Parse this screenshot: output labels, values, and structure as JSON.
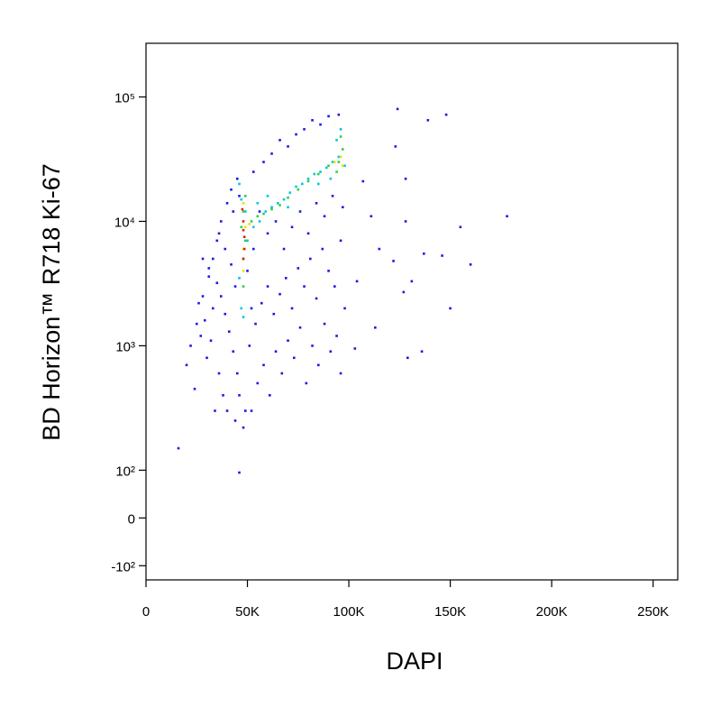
{
  "chart_data": {
    "type": "scatter",
    "x_label": "DAPI",
    "y_label": "BD Horizon™ R718  Ki-67",
    "yscale": "biexponential",
    "xlim": [
      0,
      262144
    ],
    "ylim": [
      -130,
      270000
    ],
    "xticks": [
      0,
      {
        "value": 50000,
        "label": "50K"
      },
      {
        "value": 100000,
        "label": "100K"
      },
      {
        "value": 150000,
        "label": "150K"
      },
      {
        "value": 200000,
        "label": "200K"
      },
      {
        "value": 250000,
        "label": "250K"
      }
    ],
    "yticks": [
      {
        "value": -100,
        "label": "-10²"
      },
      0,
      {
        "value": 100,
        "label": "10²"
      },
      {
        "value": 1000,
        "label": "10³"
      },
      {
        "value": 10000,
        "label": "10⁴"
      },
      {
        "value": 100000,
        "label": "10⁵"
      }
    ],
    "series": [
      {
        "color": "#1a1ae6",
        "x": [
          124000,
          139000,
          148000,
          123000,
          128000,
          107000,
          111000,
          128000,
          155000,
          178000,
          160000,
          137000,
          122000,
          131000,
          146000,
          127000,
          150000,
          113000,
          103000,
          129000,
          136000,
          104000,
          115000,
          16000,
          46000,
          20000,
          22000,
          25000,
          28000,
          31000,
          33000,
          35000,
          37000,
          40000,
          42000,
          45000,
          38000,
          36000,
          30000,
          27000,
          24000,
          34000,
          40000,
          44000,
          46000,
          48000,
          49000,
          45000,
          43000,
          41000,
          39000,
          37000,
          35000,
          33000,
          29000,
          26000,
          32000,
          31000,
          28000,
          36000,
          39000,
          42000,
          44000,
          43000,
          46000,
          52000,
          55000,
          58000,
          61000,
          64000,
          67000,
          70000,
          73000,
          76000,
          79000,
          82000,
          85000,
          88000,
          91000,
          94000,
          96000,
          54000,
          57000,
          60000,
          63000,
          66000,
          69000,
          72000,
          75000,
          78000,
          81000,
          84000,
          87000,
          90000,
          93000,
          96000,
          98000,
          53000,
          58000,
          62000,
          66000,
          70000,
          74000,
          78000,
          82000,
          86000,
          90000,
          95000,
          60000,
          64000,
          68000,
          72000,
          76000,
          80000,
          84000,
          88000,
          92000,
          97000,
          56000,
          50000,
          51000,
          52000,
          53000
        ],
        "values": [
          80000,
          65000,
          72000,
          40000,
          22000,
          21000,
          11000,
          10000,
          9000,
          11000,
          4500,
          5500,
          4800,
          3300,
          5300,
          2700,
          2000,
          1400,
          950,
          800,
          900,
          3300,
          6000,
          150,
          95,
          700,
          1000,
          1500,
          2500,
          3600,
          5000,
          7000,
          10000,
          14000,
          18000,
          22000,
          400,
          600,
          800,
          1200,
          450,
          300,
          300,
          250,
          400,
          220,
          300,
          600,
          900,
          1300,
          1800,
          2500,
          3200,
          2000,
          1600,
          2200,
          1100,
          4200,
          5000,
          8000,
          6000,
          4500,
          3000,
          12000,
          16000,
          300,
          500,
          700,
          400,
          900,
          600,
          1100,
          800,
          1400,
          500,
          1000,
          700,
          1500,
          900,
          1200,
          600,
          1500,
          2200,
          3000,
          1800,
          2600,
          3500,
          2000,
          4200,
          3000,
          5000,
          2400,
          6000,
          4000,
          3000,
          7000,
          2000,
          25000,
          30000,
          35000,
          45000,
          40000,
          50000,
          55000,
          65000,
          60000,
          70000,
          72000,
          8000,
          10000,
          6000,
          9000,
          12000,
          8000,
          14000,
          11000,
          16000,
          13000,
          12000,
          4000,
          1000,
          2000,
          6000
        ]
      },
      {
        "color": "#00c8d8",
        "x": [
          50000,
          53000,
          56000,
          59000,
          62000,
          65000,
          68000,
          71000,
          74000,
          77000,
          80000,
          83000,
          86000,
          89000,
          92000,
          95000,
          98000,
          47000,
          46000,
          48000,
          47000,
          46000,
          49000,
          55000,
          60000,
          70000,
          85000,
          94000,
          96000,
          91000
        ],
        "values": [
          7000,
          9000,
          10000,
          12000,
          13000,
          14000,
          15000,
          17000,
          19000,
          20000,
          22000,
          24000,
          25000,
          27000,
          30000,
          33000,
          28000,
          2000,
          3500,
          1700,
          15000,
          20000,
          12000,
          14000,
          16000,
          13000,
          20000,
          45000,
          55000,
          22000
        ]
      },
      {
        "color": "#30d040",
        "x": [
          48000,
          48000,
          49000,
          47000,
          48000,
          49000,
          52000,
          55000,
          58000,
          62000,
          66000,
          70000,
          75000,
          80000,
          85000,
          90000,
          95000,
          97000,
          94000,
          96000
        ],
        "values": [
          3000,
          5000,
          7000,
          9000,
          12000,
          16000,
          10000,
          11000,
          11500,
          12500,
          13500,
          15500,
          18000,
          21000,
          24000,
          28000,
          30000,
          38000,
          25000,
          48000
        ]
      },
      {
        "color": "#e8e000",
        "x": [
          48000,
          48000,
          48000,
          49000,
          51000,
          96000,
          97000,
          93000
        ],
        "values": [
          4000,
          6000,
          14000,
          9000,
          9500,
          33000,
          28000,
          30000
        ]
      },
      {
        "color": "#e02000",
        "x": [
          48000,
          48500,
          48000,
          47500,
          48000,
          48500
        ],
        "values": [
          5000,
          7500,
          10000,
          12500,
          8500,
          6000
        ]
      }
    ]
  }
}
